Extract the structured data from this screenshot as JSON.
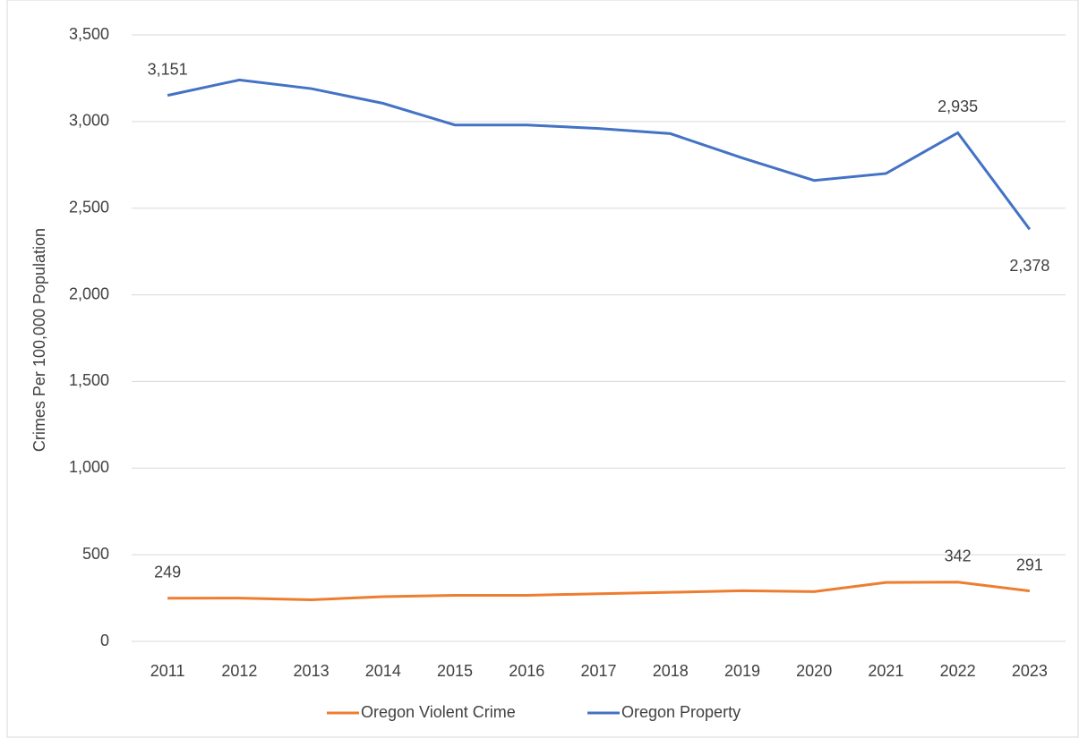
{
  "chart_data": {
    "type": "line",
    "y_label": "Crimes Per  100,000 Population",
    "categories": [
      "2011",
      "2012",
      "2013",
      "2014",
      "2015",
      "2016",
      "2017",
      "2018",
      "2019",
      "2020",
      "2021",
      "2022",
      "2023"
    ],
    "series": [
      {
        "name": "Oregon Violent Crime",
        "color": "#ed7d31",
        "values": [
          249,
          250,
          240,
          258,
          266,
          266,
          275,
          283,
          292,
          287,
          340,
          342,
          291
        ],
        "value_labels": [
          "249",
          null,
          null,
          null,
          null,
          null,
          null,
          null,
          null,
          null,
          null,
          "342",
          "291"
        ]
      },
      {
        "name": "Oregon Property",
        "color": "#4472c4",
        "values": [
          3151,
          3240,
          3190,
          3105,
          2980,
          2980,
          2960,
          2930,
          2790,
          2660,
          2700,
          2935,
          2378
        ],
        "value_labels": [
          "3,151",
          null,
          null,
          null,
          null,
          null,
          null,
          null,
          null,
          null,
          null,
          "2,935",
          "2,378"
        ]
      }
    ],
    "ylim": [
      0,
      3500
    ],
    "yticks": [
      0,
      500,
      {
        "value": 1000,
        "label": "1,000"
      },
      {
        "value": 1500,
        "label": "1,500"
      },
      {
        "value": 2000,
        "label": "2,000"
      },
      {
        "value": 2500,
        "label": "2,500"
      },
      {
        "value": 3000,
        "label": "3,000"
      },
      {
        "value": 3500,
        "label": "3,500"
      }
    ],
    "grid": true,
    "legend": "bottom"
  }
}
